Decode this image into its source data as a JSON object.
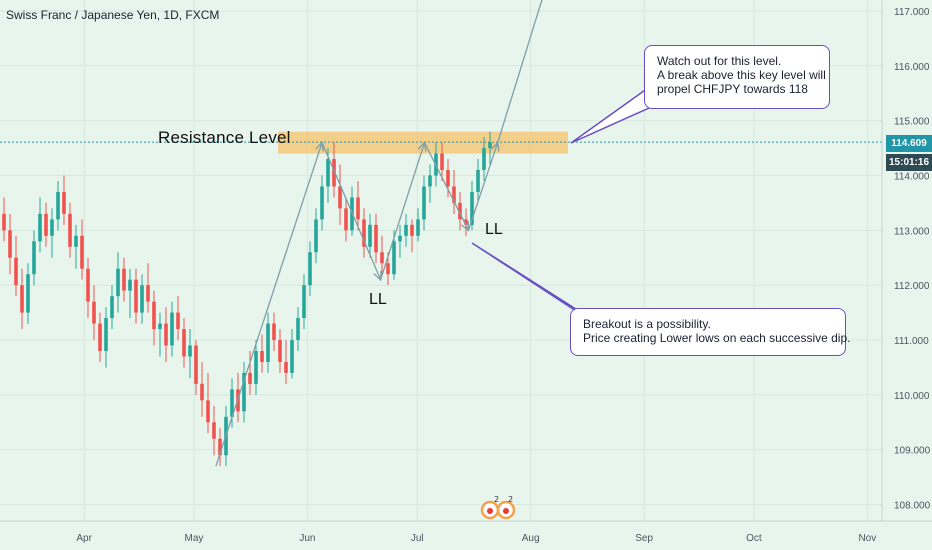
{
  "header": {
    "title": "Swiss Franc / Japanese Yen, 1D, FXCM"
  },
  "colors": {
    "background": "#e8f5ec",
    "bull": "#26a69a",
    "bear": "#ef5350",
    "zone": "#f5c36b",
    "callout_border": "#6a4fc4",
    "line": "#7f9ea8",
    "price_tag": "#2196a8"
  },
  "annotations": {
    "resistance_label": "Resistance Level",
    "ll_1": "LL",
    "ll_2": "LL",
    "callout_top": [
      "Watch out for this level.",
      "A break above this key level will",
      "propel CHFJPY towards 118"
    ],
    "callout_bottom": [
      "Breakout is a possibility.",
      "Price creating Lower lows on each successive dip."
    ]
  },
  "price_axis": {
    "current_price": "114.609",
    "countdown": "15:01:16"
  },
  "chart_data": {
    "type": "candlestick",
    "title": "Swiss Franc / Japanese Yen, 1D, FXCM",
    "x_ticks": [
      "Apr",
      "May",
      "Jun",
      "Jul",
      "Aug",
      "Sep",
      "Oct",
      "Nov"
    ],
    "y_ticks": [
      "108.000",
      "109.000",
      "110.000",
      "111.000",
      "112.000",
      "113.000",
      "114.000",
      "115.000",
      "116.000",
      "117.000"
    ],
    "ylim": [
      107.7,
      117.2
    ],
    "resistance_zone": [
      114.4,
      114.8
    ],
    "current_price": 114.609,
    "trend_path": [
      {
        "date": "2019-05-07",
        "price": 108.7
      },
      {
        "date": "2019-06-05",
        "price": 114.6
      },
      {
        "date": "2019-06-21",
        "price": 112.1
      },
      {
        "date": "2019-07-03",
        "price": 114.6
      },
      {
        "date": "2019-07-15",
        "price": 113.0
      },
      {
        "date": "2019-07-23",
        "price": 114.6
      },
      {
        "date": "2019-08-05",
        "price": 117.4
      }
    ],
    "ohlc": [
      [
        113.3,
        113.6,
        112.8,
        113.0
      ],
      [
        113.0,
        113.3,
        112.2,
        112.5
      ],
      [
        112.5,
        112.9,
        111.8,
        112.0
      ],
      [
        112.0,
        112.3,
        111.2,
        111.5
      ],
      [
        111.5,
        112.4,
        111.3,
        112.2
      ],
      [
        112.2,
        113.0,
        112.0,
        112.8
      ],
      [
        112.8,
        113.6,
        112.6,
        113.3
      ],
      [
        113.3,
        113.5,
        112.7,
        112.9
      ],
      [
        112.9,
        113.4,
        112.5,
        113.2
      ],
      [
        113.2,
        113.9,
        113.0,
        113.7
      ],
      [
        113.7,
        114.0,
        113.1,
        113.3
      ],
      [
        113.3,
        113.5,
        112.5,
        112.7
      ],
      [
        112.7,
        113.1,
        112.3,
        112.9
      ],
      [
        112.9,
        113.2,
        112.1,
        112.3
      ],
      [
        112.3,
        112.5,
        111.4,
        111.7
      ],
      [
        111.7,
        112.0,
        111.0,
        111.3
      ],
      [
        111.3,
        111.5,
        110.6,
        110.8
      ],
      [
        110.8,
        111.6,
        110.5,
        111.4
      ],
      [
        111.4,
        112.0,
        111.2,
        111.8
      ],
      [
        111.8,
        112.6,
        111.5,
        112.3
      ],
      [
        112.3,
        112.5,
        111.7,
        111.9
      ],
      [
        111.9,
        112.3,
        111.4,
        112.1
      ],
      [
        112.1,
        112.3,
        111.3,
        111.5
      ],
      [
        111.5,
        112.2,
        111.3,
        112.0
      ],
      [
        112.0,
        112.4,
        111.5,
        111.7
      ],
      [
        111.7,
        111.9,
        110.9,
        111.2
      ],
      [
        111.2,
        111.5,
        110.7,
        111.3
      ],
      [
        111.3,
        111.6,
        110.6,
        110.9
      ],
      [
        110.9,
        111.7,
        110.7,
        111.5
      ],
      [
        111.5,
        111.8,
        111.0,
        111.2
      ],
      [
        111.2,
        111.4,
        110.5,
        110.7
      ],
      [
        110.7,
        111.2,
        110.3,
        110.9
      ],
      [
        110.9,
        111.0,
        110.0,
        110.2
      ],
      [
        110.2,
        110.6,
        109.6,
        109.9
      ],
      [
        109.9,
        110.4,
        109.3,
        109.5
      ],
      [
        109.5,
        109.8,
        108.9,
        109.2
      ],
      [
        109.2,
        109.4,
        108.7,
        108.9
      ],
      [
        108.9,
        109.8,
        108.7,
        109.6
      ],
      [
        109.6,
        110.3,
        109.4,
        110.1
      ],
      [
        110.1,
        110.4,
        109.5,
        109.7
      ],
      [
        109.7,
        110.6,
        109.5,
        110.4
      ],
      [
        110.4,
        110.8,
        110.0,
        110.2
      ],
      [
        110.2,
        111.0,
        110.0,
        110.8
      ],
      [
        110.8,
        111.1,
        110.4,
        110.6
      ],
      [
        110.6,
        111.5,
        110.4,
        111.3
      ],
      [
        111.3,
        111.5,
        110.8,
        111.0
      ],
      [
        111.0,
        111.2,
        110.4,
        110.6
      ],
      [
        110.6,
        111.0,
        110.2,
        110.4
      ],
      [
        110.4,
        111.2,
        110.3,
        111.0
      ],
      [
        111.0,
        111.6,
        110.8,
        111.4
      ],
      [
        111.4,
        112.2,
        111.2,
        112.0
      ],
      [
        112.0,
        112.8,
        111.8,
        112.6
      ],
      [
        112.6,
        113.4,
        112.4,
        113.2
      ],
      [
        113.2,
        114.0,
        113.0,
        113.8
      ],
      [
        113.8,
        114.5,
        113.5,
        114.3
      ],
      [
        114.3,
        114.6,
        113.6,
        113.8
      ],
      [
        113.8,
        114.2,
        113.1,
        113.4
      ],
      [
        113.4,
        113.6,
        112.8,
        113.0
      ],
      [
        113.0,
        113.8,
        112.9,
        113.6
      ],
      [
        113.6,
        113.9,
        113.0,
        113.2
      ],
      [
        113.2,
        113.4,
        112.5,
        112.7
      ],
      [
        112.7,
        113.3,
        112.5,
        113.1
      ],
      [
        113.1,
        113.3,
        112.4,
        112.6
      ],
      [
        112.6,
        112.9,
        112.2,
        112.4
      ],
      [
        112.4,
        112.6,
        112.0,
        112.2
      ],
      [
        112.2,
        113.0,
        112.1,
        112.8
      ],
      [
        112.8,
        113.1,
        112.5,
        112.9
      ],
      [
        112.9,
        113.3,
        112.7,
        113.1
      ],
      [
        113.1,
        113.2,
        112.6,
        112.9
      ],
      [
        112.9,
        113.4,
        112.8,
        113.2
      ],
      [
        113.2,
        114.0,
        113.0,
        113.8
      ],
      [
        113.8,
        114.2,
        113.5,
        114.0
      ],
      [
        114.0,
        114.6,
        113.8,
        114.4
      ],
      [
        114.4,
        114.6,
        113.9,
        114.1
      ],
      [
        114.1,
        114.3,
        113.6,
        113.8
      ],
      [
        113.8,
        114.1,
        113.3,
        113.5
      ],
      [
        113.5,
        113.7,
        113.0,
        113.2
      ],
      [
        113.2,
        113.4,
        112.9,
        113.1
      ],
      [
        113.1,
        113.9,
        113.0,
        113.7
      ],
      [
        113.7,
        114.3,
        113.5,
        114.1
      ],
      [
        114.1,
        114.7,
        113.9,
        114.5
      ],
      [
        114.5,
        114.8,
        114.2,
        114.6
      ]
    ]
  }
}
